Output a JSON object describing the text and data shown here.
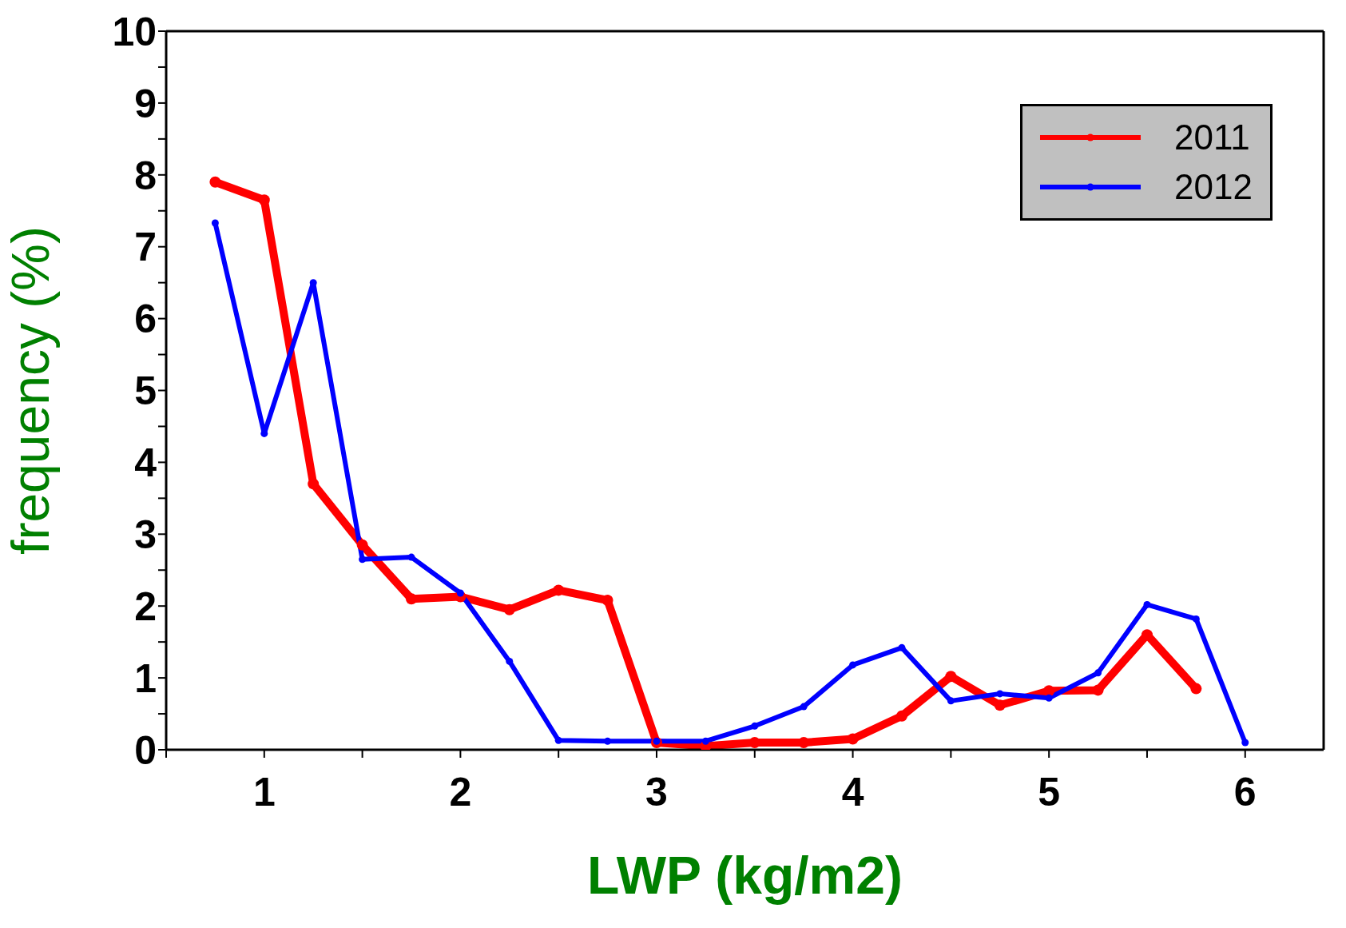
{
  "chart_data": {
    "type": "line",
    "xlabel": "LWP (kg/m2)",
    "ylabel": "frequency (%)",
    "x": [
      0.75,
      1,
      1.25,
      1.5,
      1.75,
      2,
      2.25,
      2.5,
      2.75,
      3,
      3.25,
      3.5,
      3.75,
      4,
      4.25,
      4.5,
      4.75,
      5,
      5.25,
      5.5,
      5.75,
      6
    ],
    "series": [
      {
        "name": "2011",
        "color": "#ff0000",
        "values": [
          7.9,
          7.65,
          3.7,
          2.85,
          2.1,
          2.13,
          1.95,
          2.22,
          2.08,
          0.1,
          0.05,
          0.1,
          0.1,
          0.15,
          0.47,
          1.02,
          0.62,
          0.82,
          0.83,
          1.6,
          0.85,
          null
        ]
      },
      {
        "name": "2012",
        "color": "#0000ff",
        "values": [
          7.33,
          4.4,
          6.5,
          2.65,
          2.68,
          2.18,
          1.23,
          0.13,
          0.12,
          0.12,
          0.12,
          0.33,
          0.6,
          1.18,
          1.42,
          0.68,
          0.78,
          0.72,
          1.07,
          2.02,
          1.82,
          0.1
        ]
      }
    ],
    "xlim": [
      0.5,
      6.4
    ],
    "xticks": [
      {
        "value": 0.5,
        "label": null
      },
      1,
      {
        "value": 1.5,
        "label": null
      },
      2,
      {
        "value": 2.5,
        "label": null
      },
      3,
      {
        "value": 3.5,
        "label": null
      },
      4,
      {
        "value": 4.5,
        "label": null
      },
      5,
      {
        "value": 5.5,
        "label": null
      },
      6
    ],
    "ylim": [
      0,
      10
    ],
    "yticks": [
      0,
      {
        "value": 0.5,
        "label": null
      },
      1,
      {
        "value": 1.5,
        "label": null
      },
      2,
      {
        "value": 2.5,
        "label": null
      },
      3,
      {
        "value": 3.5,
        "label": null
      },
      4,
      {
        "value": 4.5,
        "label": null
      },
      5,
      {
        "value": 5.5,
        "label": null
      },
      6,
      {
        "value": 6.5,
        "label": null
      },
      7,
      {
        "value": 7.5,
        "label": null
      },
      8,
      {
        "value": 8.5,
        "label": null
      },
      9,
      {
        "value": 9.5,
        "label": null
      },
      10
    ],
    "grid": false,
    "legend": "top right",
    "marker": "circle",
    "line_style": "solid"
  }
}
